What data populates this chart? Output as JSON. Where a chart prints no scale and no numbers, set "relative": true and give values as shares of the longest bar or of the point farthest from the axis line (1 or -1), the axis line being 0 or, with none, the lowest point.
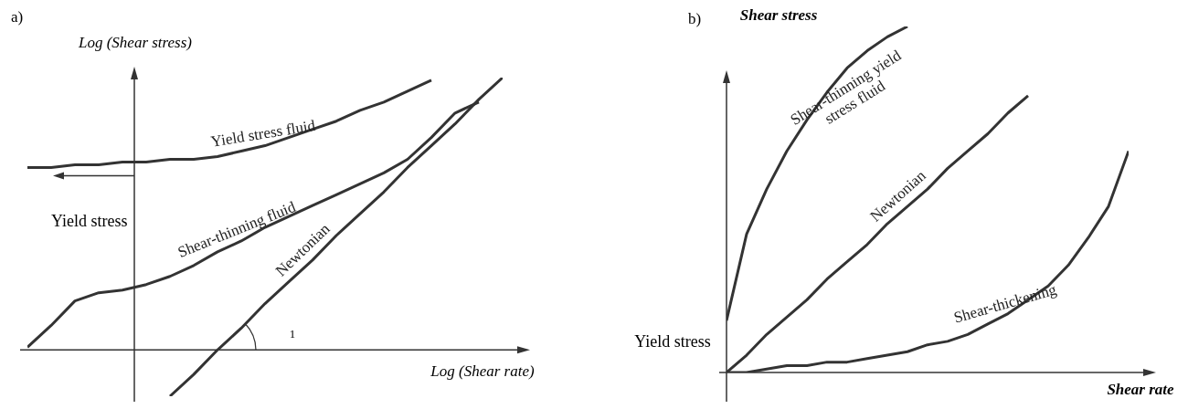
{
  "chart_data": [
    {
      "type": "line",
      "title": "a)",
      "xlabel": "Log (Shear rate)",
      "ylabel": "Log (Shear stress)",
      "relative": true,
      "annotations": [
        "Yield stress",
        "1"
      ],
      "categories": [
        null,
        null,
        null,
        null,
        null,
        null,
        null,
        null,
        null,
        null,
        null,
        null,
        null,
        null,
        null,
        null,
        null,
        null,
        null,
        null,
        null
      ],
      "series": [
        {
          "name": "Yield stress fluid",
          "color": "#333333",
          "values": [
            0.67,
            0.67,
            0.68,
            0.68,
            0.69,
            0.69,
            0.7,
            0.7,
            0.71,
            0.73,
            0.75,
            0.78,
            0.81,
            0.84,
            0.88,
            0.91,
            0.95,
            0.99,
            null,
            null,
            null
          ]
        },
        {
          "name": "Shear-thinning fluid",
          "color": "#333333",
          "values": [
            0.01,
            0.09,
            0.18,
            0.21,
            0.22,
            0.24,
            0.27,
            0.31,
            0.36,
            0.4,
            0.45,
            0.49,
            0.53,
            0.57,
            0.61,
            0.65,
            0.7,
            0.78,
            0.87,
            0.91,
            null
          ]
        },
        {
          "name": "Newtonian",
          "color": "#333333",
          "values": [
            null,
            null,
            null,
            null,
            null,
            null,
            -0.17,
            -0.09,
            0.0,
            0.08,
            0.17,
            0.25,
            0.33,
            0.42,
            0.5,
            0.58,
            0.67,
            0.75,
            0.83,
            0.92,
            1.0
          ]
        }
      ]
    },
    {
      "type": "line",
      "title": "b)",
      "xlabel": "Shear rate",
      "ylabel": "Shear stress",
      "relative": true,
      "annotations": [
        "Yield stress"
      ],
      "categories": [
        null,
        null,
        null,
        null,
        null,
        null,
        null,
        null,
        null,
        null,
        null,
        null,
        null,
        null,
        null,
        null,
        null,
        null,
        null,
        null,
        null
      ],
      "series": [
        {
          "name": "Shear-thinning yield stress fluid",
          "color": "#333333",
          "values": [
            0.15,
            0.4,
            0.53,
            0.64,
            0.73,
            0.81,
            0.88,
            0.93,
            0.97,
            1.0,
            null,
            null,
            null,
            null,
            null,
            null,
            null,
            null,
            null,
            null,
            null
          ]
        },
        {
          "name": "Newtonian",
          "color": "#333333",
          "values": [
            0,
            0.05,
            0.11,
            0.16,
            0.21,
            0.27,
            0.32,
            0.37,
            0.43,
            0.48,
            0.53,
            0.59,
            0.64,
            0.69,
            0.75,
            0.8,
            null,
            null,
            null,
            null,
            null
          ]
        },
        {
          "name": "Shear-thickening",
          "color": "#333333",
          "values": [
            0,
            0.0,
            0.01,
            0.02,
            0.02,
            0.03,
            0.03,
            0.04,
            0.05,
            0.06,
            0.08,
            0.09,
            0.11,
            0.14,
            0.17,
            0.21,
            0.25,
            0.31,
            0.39,
            0.48,
            0.64
          ]
        }
      ]
    }
  ]
}
